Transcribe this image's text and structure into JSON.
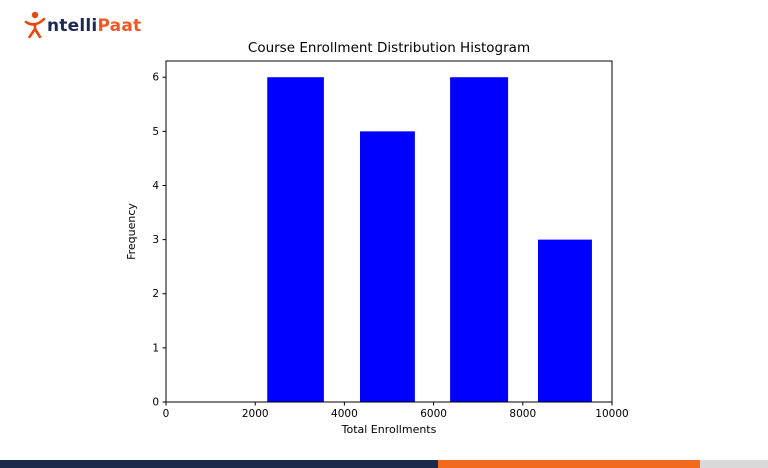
{
  "logo": {
    "alt": "IntelliPaat",
    "text_dark": "ntelli",
    "text_orange": "Paat",
    "icon_color": "#e8490f"
  },
  "chart_data": {
    "type": "bar",
    "subtype": "histogram",
    "title": "Course Enrollment Distribution Histogram",
    "xlabel": "Total Enrollments",
    "ylabel": "Frequency",
    "xlim": [
      0,
      10000
    ],
    "ylim": [
      0,
      6.3
    ],
    "xticks": [
      0,
      2000,
      4000,
      6000,
      8000,
      10000
    ],
    "yticks": [
      0,
      1,
      2,
      3,
      4,
      5,
      6
    ],
    "grid": false,
    "legend": "none",
    "bar_color": "#0000ff",
    "axis_color": "#000000",
    "bars": [
      {
        "x0": 2270,
        "x1": 3540,
        "count": 6
      },
      {
        "x0": 4350,
        "x1": 5580,
        "count": 5
      },
      {
        "x0": 6370,
        "x1": 7670,
        "count": 6
      },
      {
        "x0": 8340,
        "x1": 9550,
        "count": 3
      }
    ]
  },
  "footer": {
    "navy_color": "#1b2a4a",
    "orange_color": "#f26b1d",
    "gray_color": "#d9d9d9"
  }
}
